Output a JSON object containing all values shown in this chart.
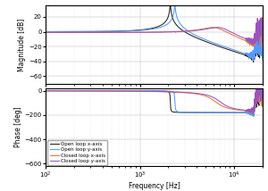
{
  "title": "",
  "xlabel": "Frequency [Hz]",
  "ylabel_mag": "Magnitude [dB]",
  "ylabel_phase": "Phase [deg]",
  "mag_ylim": [
    -70,
    35
  ],
  "phase_ylim": [
    -620,
    20
  ],
  "mag_yticks": [
    20,
    0,
    -20,
    -40,
    -60
  ],
  "phase_yticks": [
    0,
    -200,
    -400,
    -600
  ],
  "colors": {
    "ol_x": "#222222",
    "ol_y": "#5599ff",
    "cl_x": "#e07848",
    "cl_y": "#9955bb"
  },
  "legend_labels": [
    "Open loop x-axis",
    "Open loop y-axis",
    "Closed loop x-axis",
    "Closed loop y-axis"
  ],
  "background": "#ffffff",
  "grid_color": "#bbbbbb"
}
